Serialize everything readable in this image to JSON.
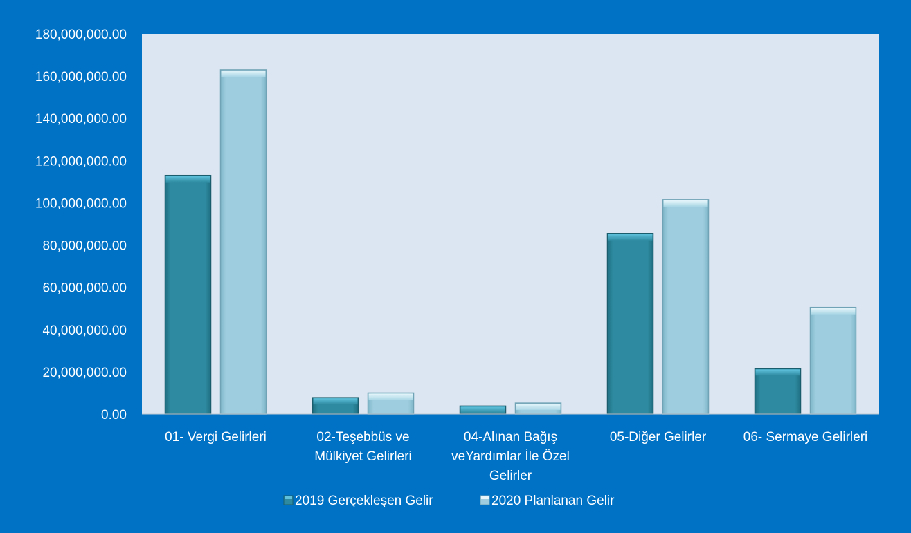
{
  "chart_data": {
    "type": "bar",
    "categories": [
      [
        "01- Vergi Gelirleri"
      ],
      [
        "02-Teşebbüs ve",
        "Mülkiyet Gelirleri"
      ],
      [
        "04-Alınan Bağış",
        "veYardımlar İle Özel",
        "Gelirler"
      ],
      [
        "05-Diğer Gelirler"
      ],
      [
        "06- Sermaye Gelirleri"
      ]
    ],
    "series": [
      {
        "name": "2019 Gerçekleşen Gelir",
        "values": [
          113000000,
          7800000,
          3800000,
          85500000,
          21500000
        ],
        "color": "#2E8AA0"
      },
      {
        "name": "2020 Planlanan Gelir",
        "values": [
          163000000,
          10000000,
          5200000,
          101500000,
          50500000
        ],
        "color": "#9DCDDE"
      }
    ],
    "ylim": [
      0,
      180000000
    ],
    "yticks": [
      0,
      20000000,
      40000000,
      60000000,
      80000000,
      100000000,
      120000000,
      140000000,
      160000000,
      180000000
    ],
    "ytick_labels": [
      "0.00",
      "20,000,000.00",
      "40,000,000.00",
      "60,000,000.00",
      "80,000,000.00",
      "100,000,000.00",
      "120,000,000.00",
      "140,000,000.00",
      "160,000,000.00",
      "180,000,000.00"
    ],
    "title": "",
    "xlabel": "",
    "ylabel": "",
    "grid": false,
    "legend": "bottom",
    "colors": {
      "background": "#0072C6",
      "plot_area": "#DCE6F2",
      "text": "#FFFFFF"
    }
  }
}
